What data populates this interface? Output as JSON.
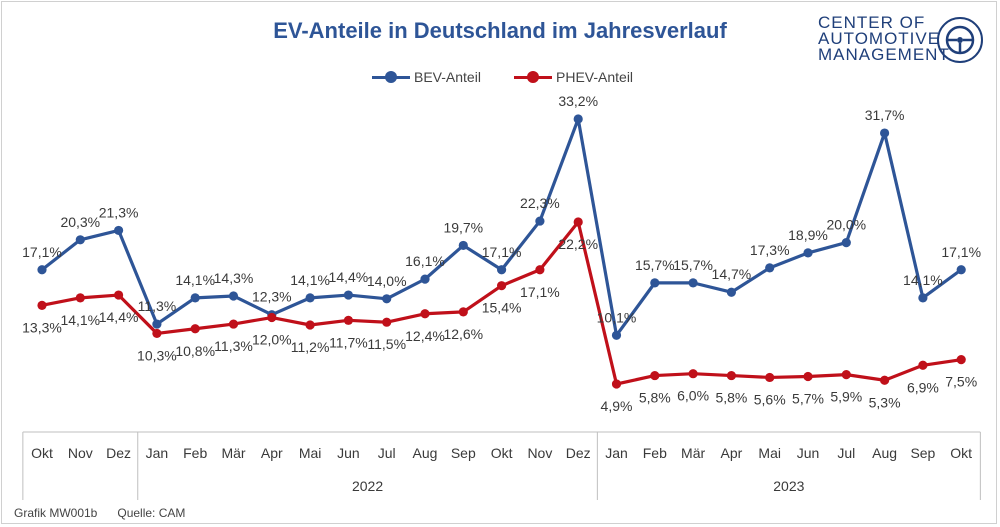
{
  "title": "EV-Anteile in Deutschland im Jahresverlauf",
  "logo": {
    "line1": "CENTER OF",
    "line2": "AUTOMOTIVE",
    "line3": "MANAGEMENT",
    "icon": "steering-wheel-seal-icon"
  },
  "footer": {
    "graphic_id": "Grafik MW001b",
    "source": "Quelle: CAM"
  },
  "chart_data": {
    "type": "line",
    "title": "EV-Anteile in Deutschland im Jahresverlauf",
    "x": [
      "Okt",
      "Nov",
      "Dez",
      "Jan",
      "Feb",
      "Mär",
      "Apr",
      "Mai",
      "Jun",
      "Jul",
      "Aug",
      "Sep",
      "Okt",
      "Nov",
      "Dez",
      "Jan",
      "Feb",
      "Mär",
      "Apr",
      "Mai",
      "Jun",
      "Jul",
      "Aug",
      "Sep",
      "Okt"
    ],
    "year_groups": [
      {
        "label": "",
        "start": 0,
        "end": 2
      },
      {
        "label": "2022",
        "start": 3,
        "end": 14
      },
      {
        "label": "2023",
        "start": 15,
        "end": 24
      }
    ],
    "series": [
      {
        "name": "BEV-Anteil",
        "color": "#2e5597",
        "values": [
          17.1,
          20.3,
          21.3,
          11.3,
          14.1,
          14.3,
          12.3,
          14.1,
          14.4,
          14.0,
          16.1,
          19.7,
          17.1,
          22.3,
          33.2,
          10.1,
          15.7,
          15.7,
          14.7,
          17.3,
          18.9,
          20.0,
          31.7,
          14.1,
          17.1
        ],
        "labels": [
          "17,1%",
          "20,3%",
          "21,3%",
          "11,3%",
          "14,1%",
          "14,3%",
          "12,3%",
          "14,1%",
          "14,4%",
          "14,0%",
          "16,1%",
          "19,7%",
          "17,1%",
          "22,3%",
          "33,2%",
          "10,1%",
          "15,7%",
          "15,7%",
          "14,7%",
          "17,3%",
          "18,9%",
          "20,0%",
          "31,7%",
          "14,1%",
          "17,1%"
        ]
      },
      {
        "name": "PHEV-Anteil",
        "color": "#c0101a",
        "values": [
          13.3,
          14.1,
          14.4,
          10.3,
          10.8,
          11.3,
          12.0,
          11.2,
          11.7,
          11.5,
          12.4,
          12.6,
          15.4,
          17.1,
          22.2,
          4.9,
          5.8,
          6.0,
          5.8,
          5.6,
          5.7,
          5.9,
          5.3,
          6.9,
          7.5
        ],
        "labels": [
          "13,3%",
          "14,1%",
          "14,4%",
          "10,3%",
          "10,8%",
          "11,3%",
          "12,0%",
          "11,2%",
          "11,7%",
          "11,5%",
          "12,4%",
          "12,6%",
          "15,4%",
          "17,1%",
          "22,2%",
          "4,9%",
          "5,8%",
          "6,0%",
          "5,8%",
          "5,6%",
          "5,7%",
          "5,9%",
          "5,3%",
          "6,9%",
          "7,5%"
        ]
      }
    ],
    "legend_position": "top-center",
    "grid": false
  }
}
